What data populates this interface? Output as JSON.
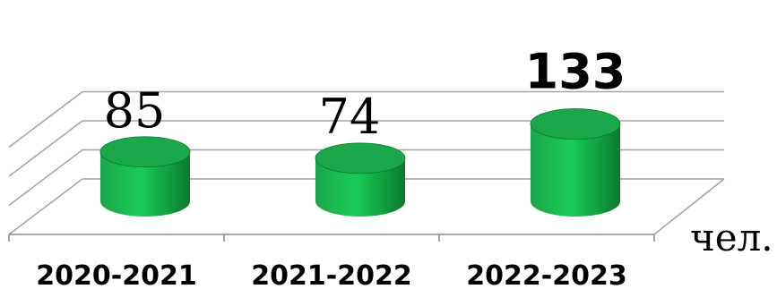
{
  "chart_data": {
    "type": "bar",
    "style": "3d-cylinder",
    "categories": [
      "2020-2021",
      "2021-2022",
      "2022-2023"
    ],
    "values": [
      85,
      74,
      133
    ],
    "value_labels": [
      "85",
      "74",
      "133"
    ],
    "emphasized_value_index": 2,
    "ylim": [
      0,
      150
    ],
    "y_gridlines": [
      0,
      50,
      100,
      150
    ],
    "grid": true,
    "unit_label": "чел.",
    "bar_color": "#1aa84a",
    "bar_highlight_color": "#19cc55",
    "bar_shadow_color": "#0b7a2f"
  }
}
